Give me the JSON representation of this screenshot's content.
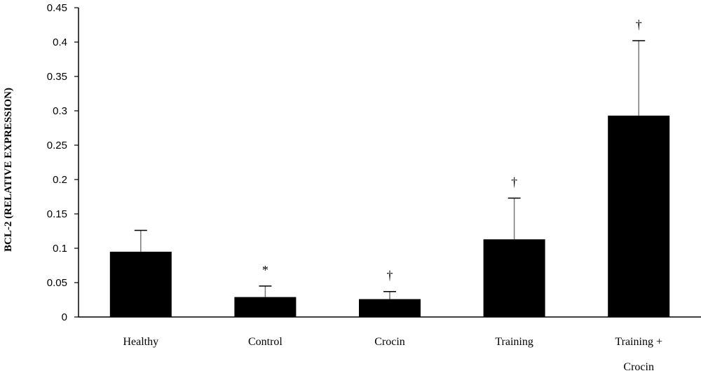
{
  "chart_data": {
    "type": "bar",
    "ylabel": "BCL-2 (RELATIVE EXPRESSION)",
    "xlabel": "",
    "ylim": [
      0,
      0.45
    ],
    "yticks": [
      "0",
      "0.05",
      "0.1",
      "0.15",
      "0.2",
      "0.25",
      "0.3",
      "0.35",
      "0.4",
      "0.45"
    ],
    "categories": [
      [
        "Healthy"
      ],
      [
        "Control"
      ],
      [
        "Crocin"
      ],
      [
        "Training"
      ],
      [
        "Training +",
        "Crocin"
      ]
    ],
    "values": [
      0.095,
      0.029,
      0.026,
      0.113,
      0.293
    ],
    "error_upper": [
      0.126,
      0.045,
      0.037,
      0.173,
      0.402
    ],
    "annotations": [
      "",
      "*",
      "†",
      "†",
      "†"
    ],
    "bar_color": "#000000",
    "grid": false,
    "legend": "none"
  }
}
